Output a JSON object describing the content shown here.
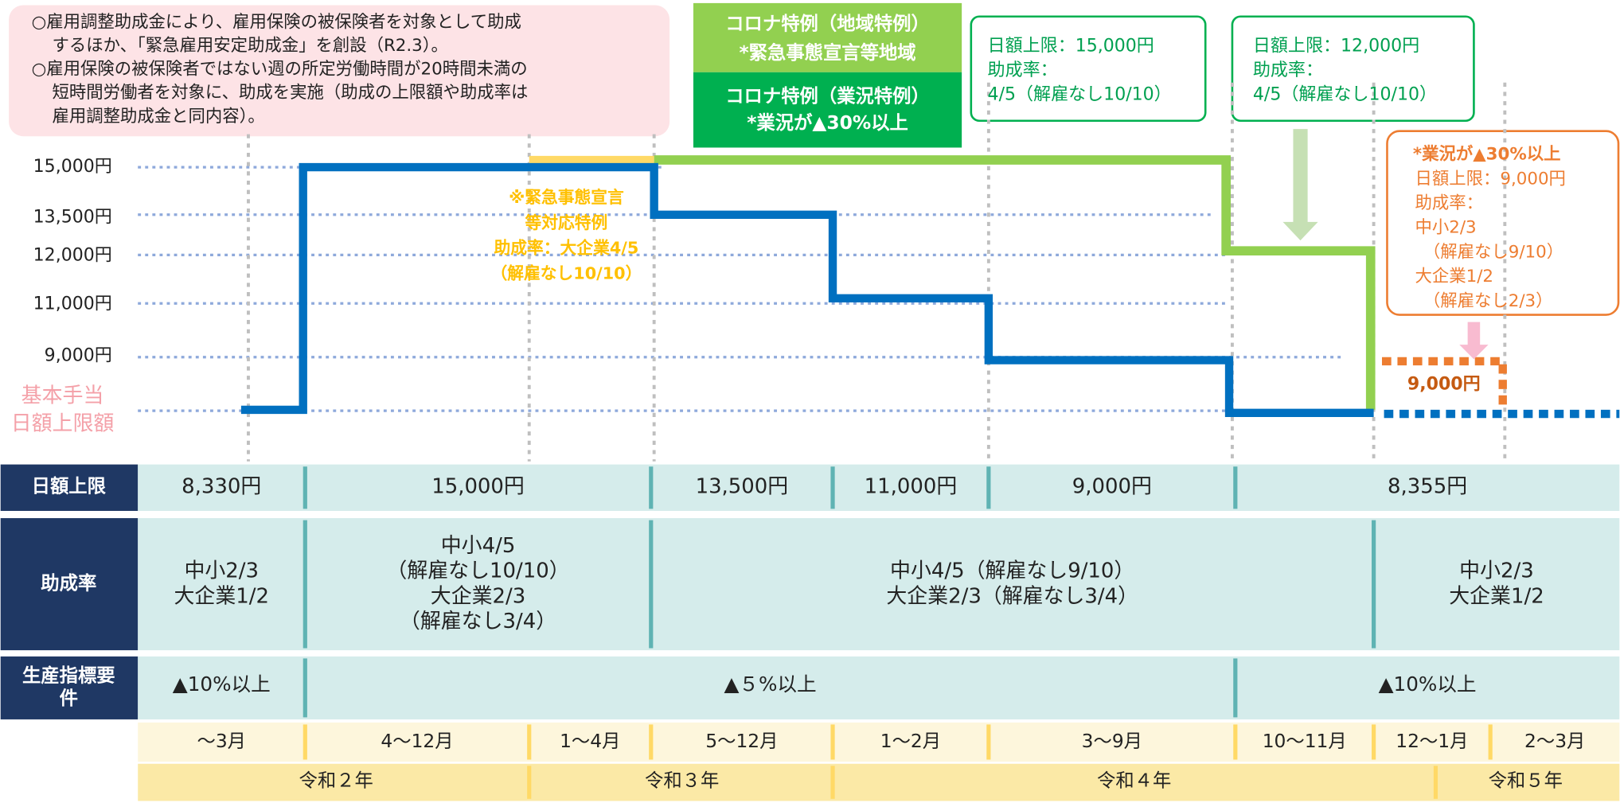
{
  "note": {
    "lines": [
      "○雇用調整助成金により、雇用保険の被保険者を対象として助成",
      "するほか、「緊急雇用安定助成金」を創設（R2.3）。",
      "○雇用保険の被保険者ではない週の所定労働時間が20時間未満の",
      "短時間労働者を対象に、助成を実施（助成の上限額や助成率は",
      "雇用調整助成金と同内容）。"
    ]
  },
  "badge_region": [
    "コロナ特例（地域特例）",
    "*緊急事態宣言等地域"
  ],
  "badge_business": [
    "コロナ特例（業況特例）",
    "*業況が▲30%以上"
  ],
  "box_15000": [
    "日額上限：15,000円",
    "助成率：",
    "4/5（解雇なし10/10）"
  ],
  "box_12000": [
    "日額上限：12,000円",
    "助成率：",
    "4/5（解雇なし10/10）"
  ],
  "box_orange": [
    "*業況が▲30%以上",
    "日額上限：9,000円",
    "助成率：",
    "中小2/3",
    "（解雇なし9/10）",
    "大企業1/2",
    "（解雇なし2/3）"
  ],
  "emergency_note": [
    "※緊急事態宣言",
    "等対応特例",
    "助成率：大企業4/5",
    "（解雇なし10/10）"
  ],
  "orange_value": "9,000円",
  "y_labels": [
    "15,000円",
    "13,500円",
    "12,000円",
    "11,000円",
    "9,000円"
  ],
  "base_label": [
    "基本手当",
    "日額上限額"
  ],
  "table": {
    "headers": [
      "日額上限",
      "助成率",
      "生産指標要件"
    ],
    "limit": [
      "8,330円",
      "15,000円",
      "13,500円",
      "11,000円",
      "9,000円",
      "8,355円"
    ],
    "rate": [
      [
        "中小2/3",
        "大企業1/2"
      ],
      [
        "中小4/5",
        "（解雇なし10/10）",
        "大企業2/3",
        "（解雇なし3/4）"
      ],
      [
        "中小4/5（解雇なし9/10）",
        "大企業2/3（解雇なし3/4）"
      ],
      [
        "中小2/3",
        "大企業1/2"
      ]
    ],
    "index": [
      "▲10%以上",
      "▲５%以上",
      "▲10%以上"
    ],
    "months": [
      "～3月",
      "4～12月",
      "1～4月",
      "5～12月",
      "1～2月",
      "3～9月",
      "10～11月",
      "12～1月",
      "2～3月"
    ],
    "years": [
      "令和２年",
      "令和３年",
      "令和４年",
      "令和５年"
    ]
  }
}
